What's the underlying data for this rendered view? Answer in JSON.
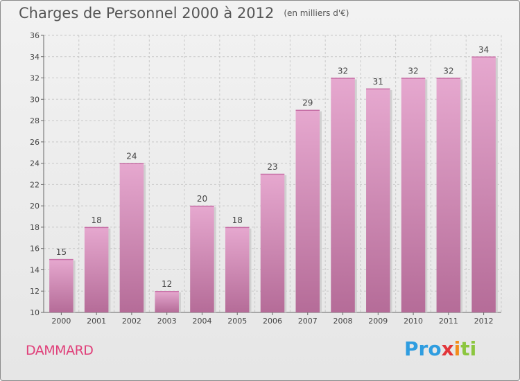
{
  "header": {
    "title": "Charges de Personnel 2000 à 2012",
    "subtitle": "(en milliers d'€)"
  },
  "footer": {
    "commune": "DAMMARD",
    "logo": "Proxiti"
  },
  "colors": {
    "bar_top": "#e6a8cf",
    "bar_bottom": "#b56c98",
    "commune": "#e0407a"
  },
  "chart_data": {
    "type": "bar",
    "title": "Charges de Personnel 2000 à 2012",
    "subtitle": "(en milliers d'€)",
    "categories": [
      "2000",
      "2001",
      "2002",
      "2003",
      "2004",
      "2005",
      "2006",
      "2007",
      "2008",
      "2009",
      "2010",
      "2011",
      "2012"
    ],
    "values": [
      15,
      18,
      24,
      12,
      20,
      18,
      23,
      29,
      32,
      31,
      32,
      32,
      34
    ],
    "ylim": [
      10,
      36
    ],
    "yticks": [
      10,
      12,
      14,
      16,
      18,
      20,
      22,
      24,
      26,
      28,
      30,
      32,
      34,
      36
    ],
    "grid": true,
    "xlabel": "",
    "ylabel": ""
  }
}
